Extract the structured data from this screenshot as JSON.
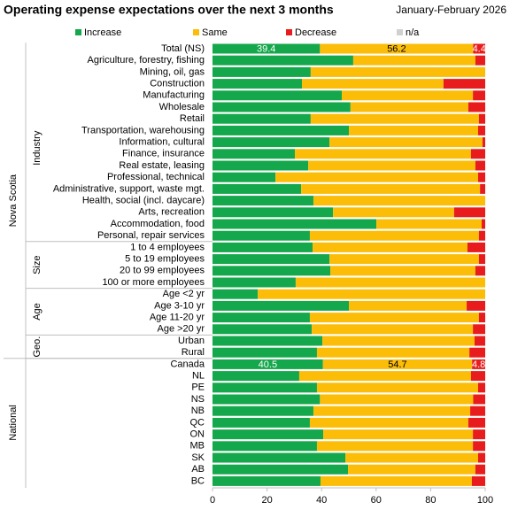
{
  "chart_data": {
    "type": "stacked_bar_horizontal",
    "title": "Operating expense expectations over the next 3 months",
    "subtitle": "January-February  2026",
    "categories": [
      "Total (NS)",
      "Agriculture, forestry, fishing",
      "Mining, oil, gas",
      "Construction",
      "Manufacturing",
      "Wholesale",
      "Retail",
      "Transportation, warehousing",
      "Information, cultural",
      "Finance, insurance",
      "Real estate, leasing",
      "Professional, technical",
      "Administrative, support, waste mgt.",
      "Health, social (incl. daycare)",
      "Arts, recreation",
      "Accommodation, food",
      "Personal, repair services",
      "1 to 4 employees",
      "5 to 19 employees",
      "20 to 99 employees",
      "100 or more employees",
      "Age <2 yr",
      "Age 3-10 yr",
      "Age 11-20 yr",
      "Age >20 yr",
      "Urban",
      "Rural",
      "Canada",
      "NL",
      "PE",
      "NS",
      "NB",
      "QC",
      "ON",
      "MB",
      "SK",
      "AB",
      "BC"
    ],
    "series": [
      {
        "name": "Increase",
        "color": "#14a74b",
        "values": [
          39.4,
          51.6,
          36.0,
          32.8,
          47.4,
          50.6,
          36.0,
          50.0,
          42.9,
          30.2,
          35.1,
          23.1,
          32.5,
          37.0,
          44.2,
          60.1,
          35.7,
          36.7,
          42.9,
          43.2,
          30.5,
          16.6,
          50.0,
          35.7,
          36.4,
          40.3,
          38.3,
          40.5,
          31.8,
          38.3,
          39.4,
          37.0,
          35.7,
          40.6,
          38.3,
          48.7,
          49.7,
          39.6
        ],
        "value_labels": [
          "39.4",
          null,
          null,
          null,
          null,
          null,
          null,
          null,
          null,
          null,
          null,
          null,
          null,
          null,
          null,
          null,
          null,
          null,
          null,
          null,
          null,
          null,
          null,
          null,
          null,
          null,
          null,
          "40.5",
          null,
          null,
          null,
          null,
          null,
          null,
          null,
          null,
          null,
          null
        ]
      },
      {
        "name": "Same",
        "color": "#fbbd08",
        "values": [
          56.2,
          44.8,
          64.0,
          51.9,
          48.1,
          43.2,
          61.7,
          47.4,
          56.1,
          64.6,
          61.3,
          74.3,
          65.6,
          63.0,
          44.4,
          38.6,
          62.0,
          56.8,
          54.8,
          53.2,
          69.5,
          83.4,
          43.2,
          62.0,
          59.1,
          55.8,
          55.9,
          54.7,
          63.0,
          59.1,
          56.2,
          57.5,
          58.1,
          54.9,
          57.2,
          48.7,
          46.7,
          55.5
        ],
        "value_labels": [
          "56.2",
          null,
          null,
          null,
          null,
          null,
          null,
          null,
          null,
          null,
          null,
          null,
          null,
          null,
          null,
          null,
          null,
          null,
          null,
          null,
          null,
          null,
          null,
          null,
          null,
          null,
          null,
          "54.7",
          null,
          null,
          null,
          null,
          null,
          null,
          null,
          null,
          null,
          null
        ]
      },
      {
        "name": "Decrease",
        "color": "#e81c1c",
        "values": [
          4.4,
          3.6,
          0,
          15.3,
          4.5,
          6.2,
          2.3,
          2.6,
          1.0,
          5.2,
          3.6,
          2.6,
          1.9,
          0,
          11.4,
          1.3,
          2.3,
          6.5,
          2.3,
          3.6,
          0,
          0,
          6.8,
          2.3,
          4.5,
          3.9,
          5.8,
          4.8,
          5.2,
          2.6,
          4.4,
          5.5,
          6.2,
          4.5,
          4.5,
          2.6,
          3.6,
          4.9
        ],
        "value_labels": [
          "4.4",
          null,
          null,
          null,
          null,
          null,
          null,
          null,
          null,
          null,
          null,
          null,
          null,
          null,
          null,
          null,
          null,
          null,
          null,
          null,
          null,
          null,
          null,
          null,
          null,
          null,
          null,
          "4.8",
          null,
          null,
          null,
          null,
          null,
          null,
          null,
          null,
          null,
          null
        ]
      },
      {
        "name": "n/a",
        "color": "#d0d0d0",
        "values": [
          0,
          0,
          0,
          0,
          0,
          0,
          0,
          0,
          0,
          0,
          0,
          0,
          0,
          0,
          0,
          0,
          0,
          0,
          0,
          0,
          0,
          0,
          0,
          0,
          0,
          0,
          0,
          0,
          0,
          0,
          0,
          0,
          0,
          0,
          0,
          0,
          0,
          0
        ]
      }
    ],
    "groups": [
      {
        "label": "Industry",
        "start": 1,
        "end": 16
      },
      {
        "label": "Size",
        "start": 17,
        "end": 20
      },
      {
        "label": "Age",
        "start": 21,
        "end": 24
      },
      {
        "label": "Geo.",
        "start": 25,
        "end": 26
      }
    ],
    "outer_groups": [
      {
        "label": "Nova Scotia",
        "start": 0,
        "end": 26
      },
      {
        "label": "National",
        "start": 27,
        "end": 37
      }
    ],
    "xlim": [
      0,
      100
    ],
    "xticks": [
      0,
      20,
      40,
      60,
      80,
      100
    ],
    "legend": "top"
  }
}
